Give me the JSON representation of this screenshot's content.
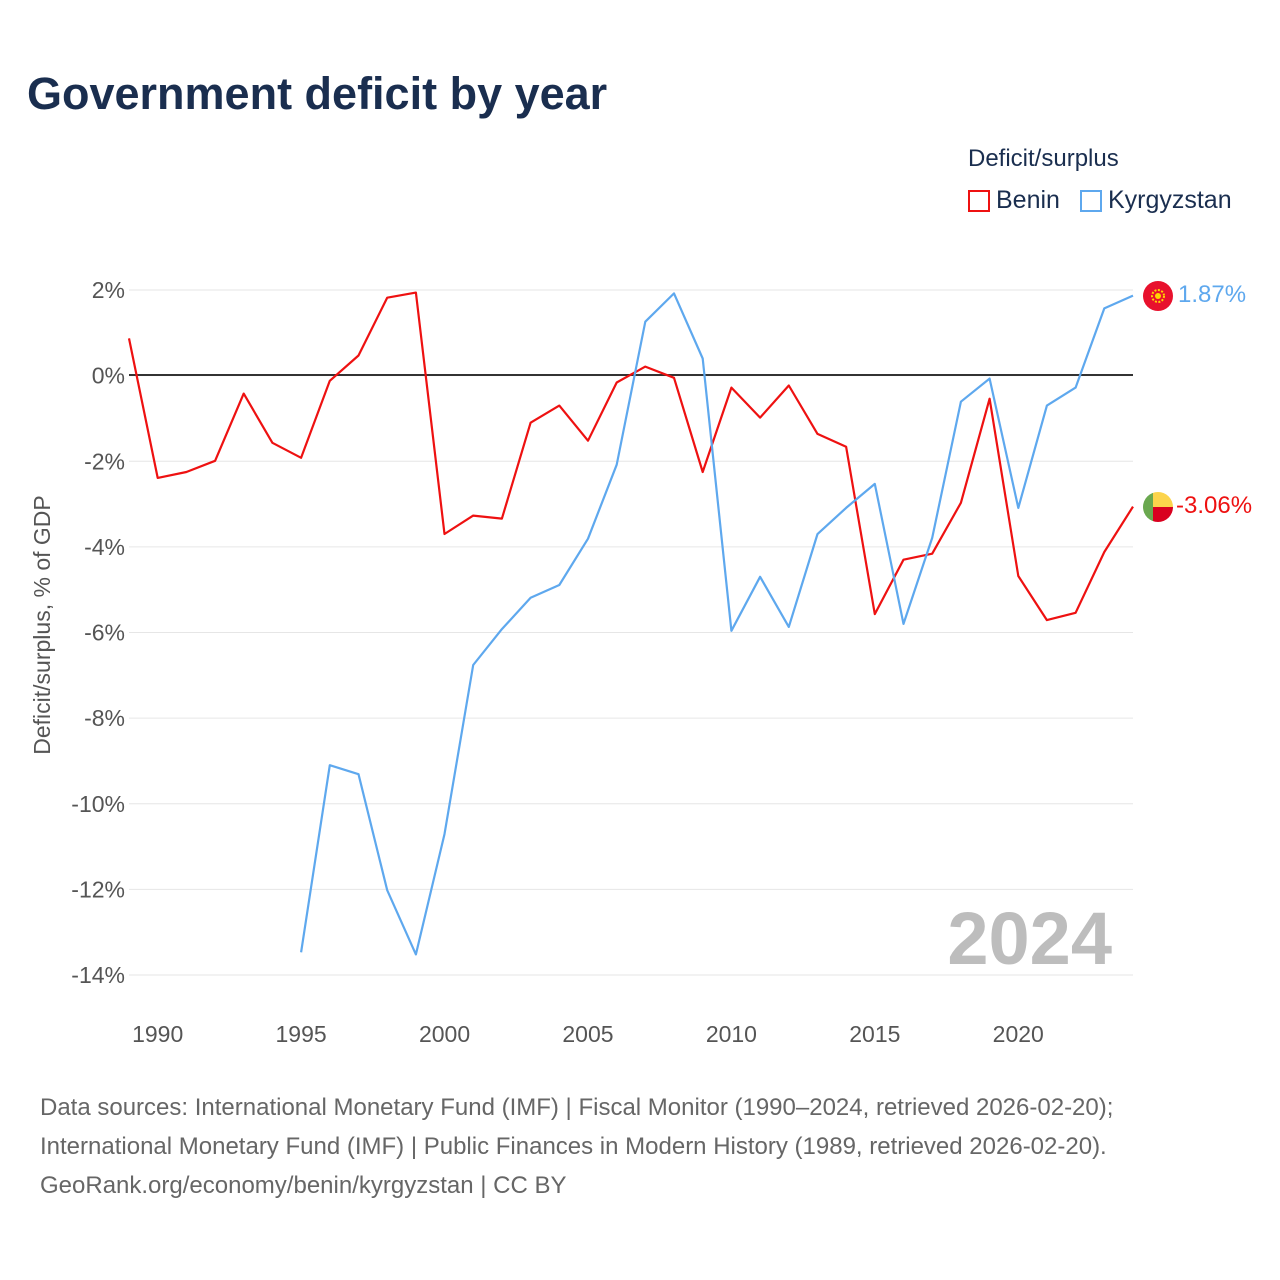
{
  "title": "Government deficit by year",
  "legend": {
    "title": "Deficit/surplus",
    "items": [
      {
        "name": "Benin",
        "color": "#ee1111"
      },
      {
        "name": "Kyrgyzstan",
        "color": "#5ea8ee"
      }
    ]
  },
  "chart_data": {
    "type": "line",
    "title": "Government deficit by year",
    "xlabel": "",
    "ylabel": "Deficit/surplus, % of GDP",
    "xlim": [
      1989,
      2024
    ],
    "ylim": [
      -14,
      2
    ],
    "grid": true,
    "legend_position": "top-right",
    "x_ticks": [
      "1990",
      "1995",
      "2000",
      "2005",
      "2010",
      "2015",
      "2020"
    ],
    "y_ticks": [
      "2%",
      "0%",
      "-2%",
      "-4%",
      "-6%",
      "-8%",
      "-10%",
      "-12%",
      "-14%"
    ],
    "watermark_year": "2024",
    "series": [
      {
        "name": "Benin",
        "color": "#ee1111",
        "end_label": "-3.06%",
        "x": [
          1989,
          1990,
          1991,
          1992,
          1993,
          1994,
          1995,
          1996,
          1997,
          1998,
          1999,
          2000,
          2001,
          2002,
          2003,
          2004,
          2005,
          2006,
          2007,
          2008,
          2009,
          2010,
          2011,
          2012,
          2013,
          2014,
          2015,
          2016,
          2017,
          2018,
          2019,
          2020,
          2021,
          2022,
          2023,
          2024
        ],
        "values": [
          0.87,
          -2.39,
          -2.25,
          -1.99,
          -0.42,
          -1.57,
          -1.92,
          -0.12,
          0.47,
          1.82,
          1.94,
          -3.7,
          -3.27,
          -3.34,
          -1.1,
          -0.7,
          -1.52,
          -0.16,
          0.21,
          -0.05,
          -2.25,
          -0.28,
          -0.98,
          -0.23,
          -1.36,
          -1.66,
          -5.57,
          -4.3,
          -4.16,
          -2.97,
          -0.54,
          -4.68,
          -5.71,
          -5.54,
          -4.12,
          -3.06
        ]
      },
      {
        "name": "Kyrgyzstan",
        "color": "#5ea8ee",
        "end_label": "1.87%",
        "x": [
          1995,
          1996,
          1997,
          1998,
          1999,
          2000,
          2001,
          2002,
          2003,
          2004,
          2005,
          2006,
          2007,
          2008,
          2009,
          2010,
          2011,
          2012,
          2013,
          2014,
          2015,
          2016,
          2017,
          2018,
          2019,
          2020,
          2021,
          2022,
          2023,
          2024
        ],
        "values": [
          -13.47,
          -9.1,
          -9.31,
          -12.02,
          -13.52,
          -10.71,
          -6.76,
          -5.92,
          -5.19,
          -4.89,
          -3.81,
          -2.08,
          1.26,
          1.92,
          0.4,
          -5.96,
          -4.7,
          -5.87,
          -3.7,
          -3.09,
          -2.53,
          -5.8,
          -3.79,
          -0.61,
          -0.07,
          -3.09,
          -0.7,
          -0.28,
          1.57,
          1.87
        ]
      }
    ]
  },
  "footer": {
    "line1": "Data sources: International Monetary Fund (IMF) | Fiscal Monitor (1990–2024, retrieved 2026-02-20);",
    "line2": "International Monetary Fund (IMF) | Public Finances in Modern History (1989, retrieved 2026-02-20).",
    "line3": "GeoRank.org/economy/benin/kyrgyzstan | CC BY"
  }
}
